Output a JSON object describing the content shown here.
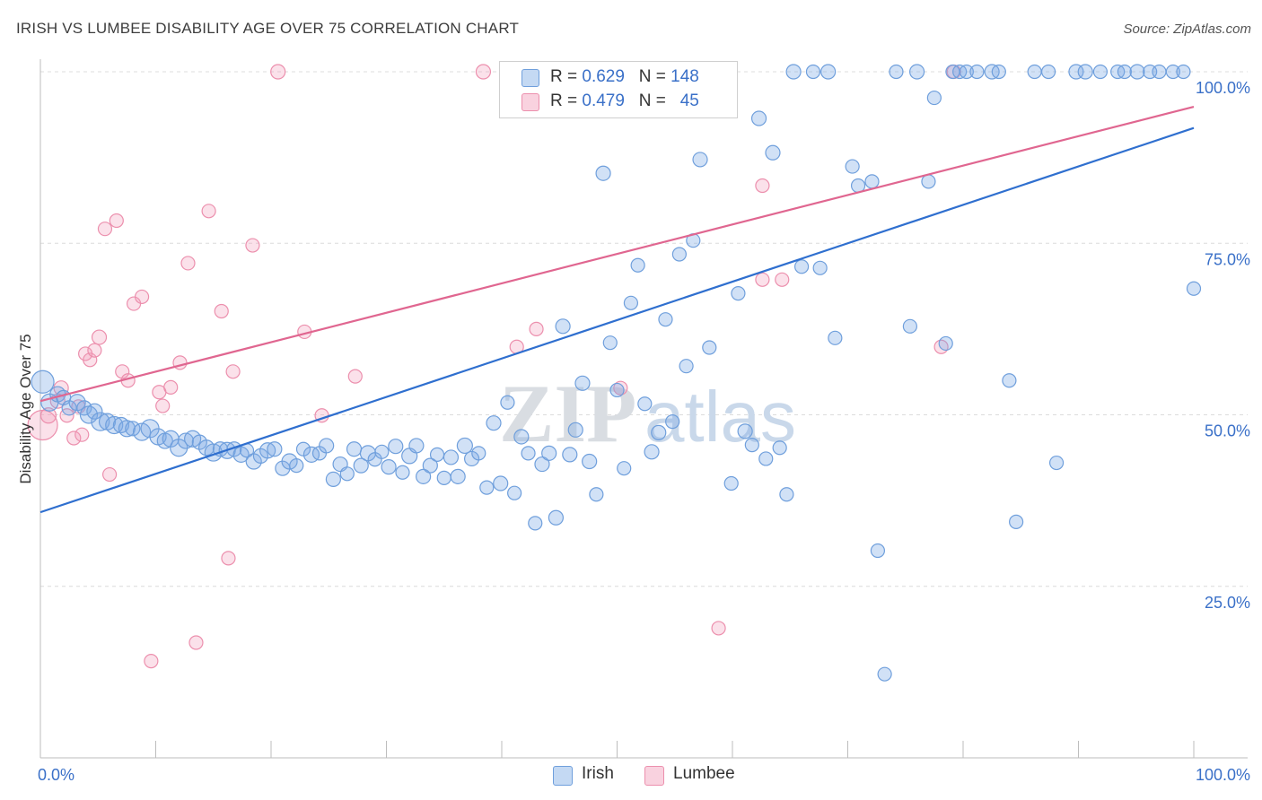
{
  "title": "IRISH VS LUMBEE DISABILITY AGE OVER 75 CORRELATION CHART",
  "source": "Source: ZipAtlas.com",
  "watermark": {
    "zip": "ZIP",
    "atlas": "atlas"
  },
  "colors": {
    "irish_fill": "rgba(124,170,228,0.35)",
    "irish_stroke": "#6f9fdc",
    "irish_line": "#2f6fcf",
    "lumbee_fill": "rgba(242,156,184,0.30)",
    "lumbee_stroke": "#ec8fad",
    "lumbee_line": "#e06690",
    "tick_label": "#3a70c8",
    "grid": "#dcdcdc"
  },
  "legend": {
    "irish": {
      "r_label": "R = ",
      "r_value": "0.629",
      "n_label": "N = ",
      "n_value": "148"
    },
    "lumbee": {
      "r_label": "R = ",
      "r_value": "0.479",
      "n_label": "N = ",
      "n_value": "45"
    }
  },
  "chart_data": {
    "type": "scatter",
    "title": "IRISH VS LUMBEE DISABILITY AGE OVER 75 CORRELATION CHART",
    "xlabel": "",
    "ylabel": "Disability Age Over 75",
    "xlim": [
      0,
      100
    ],
    "ylim": [
      0,
      104
    ],
    "x_tick_labels": [
      {
        "value": 0,
        "label": "0.0%"
      },
      {
        "value": 100,
        "label": "100.0%"
      }
    ],
    "y_tick_labels": [
      {
        "value": 25,
        "label": "25.0%"
      },
      {
        "value": 50,
        "label": "50.0%"
      },
      {
        "value": 75,
        "label": "75.0%"
      },
      {
        "value": 100,
        "label": "100.0%"
      }
    ],
    "grid": true,
    "legend_position": "top-center",
    "series": [
      {
        "name": "Irish",
        "R": 0.629,
        "N": 148,
        "trend": {
          "x": [
            0,
            100
          ],
          "y": [
            35.8,
            91.8
          ]
        },
        "points": [
          [
            0.2,
            54.8,
            22
          ],
          [
            0.8,
            51.8,
            16
          ],
          [
            1.5,
            53,
            14
          ],
          [
            2.0,
            52.5,
            13
          ],
          [
            2.5,
            51,
            13
          ],
          [
            3.2,
            51.8,
            15
          ],
          [
            3.8,
            51,
            13
          ],
          [
            4.2,
            50,
            16
          ],
          [
            4.7,
            50.5,
            14
          ],
          [
            5.2,
            49,
            17
          ],
          [
            5.8,
            49,
            15
          ],
          [
            6.4,
            48.5,
            16
          ],
          [
            7.0,
            48.5,
            14
          ],
          [
            7.5,
            48,
            15
          ],
          [
            8.0,
            48,
            13
          ],
          [
            8.8,
            47.5,
            16
          ],
          [
            9.5,
            48,
            17
          ],
          [
            10.2,
            46.8,
            15
          ],
          [
            10.8,
            46.2,
            14
          ],
          [
            11.3,
            46.5,
            15
          ],
          [
            12.0,
            45.2,
            16
          ],
          [
            12.6,
            46.2,
            14
          ],
          [
            13.2,
            46.5,
            15
          ],
          [
            13.8,
            46,
            13
          ],
          [
            14.4,
            45.2,
            14
          ],
          [
            15.0,
            44.5,
            16
          ],
          [
            15.6,
            45,
            13
          ],
          [
            16.2,
            44.8,
            15
          ],
          [
            16.8,
            45,
            13
          ],
          [
            17.4,
            44.2,
            14
          ],
          [
            17.9,
            44.8,
            12
          ],
          [
            18.5,
            43.2,
            14
          ],
          [
            19.1,
            44,
            13
          ],
          [
            19.7,
            44.8,
            14
          ],
          [
            20.3,
            45,
            13
          ],
          [
            21.0,
            42.2,
            13
          ],
          [
            21.6,
            43.2,
            14
          ],
          [
            22.2,
            42.6,
            12
          ],
          [
            22.8,
            45,
            12
          ],
          [
            23.5,
            44.2,
            14
          ],
          [
            24.2,
            44.4,
            12
          ],
          [
            24.8,
            45.5,
            13
          ],
          [
            25.4,
            40.6,
            13
          ],
          [
            26.0,
            42.8,
            13
          ],
          [
            26.6,
            41.4,
            12
          ],
          [
            27.2,
            45,
            13
          ],
          [
            27.8,
            42.6,
            13
          ],
          [
            28.4,
            44.4,
            14
          ],
          [
            29.0,
            43.5,
            12
          ],
          [
            29.6,
            44.6,
            12
          ],
          [
            30.2,
            42.4,
            13
          ],
          [
            30.8,
            45.4,
            13
          ],
          [
            31.4,
            41.6,
            12
          ],
          [
            32.0,
            44,
            14
          ],
          [
            32.6,
            45.5,
            13
          ],
          [
            33.2,
            41,
            13
          ],
          [
            33.8,
            42.6,
            13
          ],
          [
            34.4,
            44.2,
            12
          ],
          [
            35.0,
            40.8,
            12
          ],
          [
            35.6,
            43.8,
            13
          ],
          [
            36.2,
            41,
            13
          ],
          [
            36.8,
            45.5,
            14
          ],
          [
            37.4,
            43.6,
            13
          ],
          [
            38.0,
            44.4,
            12
          ],
          [
            38.7,
            39.4,
            12
          ],
          [
            39.3,
            48.8,
            13
          ],
          [
            39.9,
            40,
            13
          ],
          [
            40.5,
            51.8,
            12
          ],
          [
            41.1,
            38.6,
            12
          ],
          [
            41.7,
            46.8,
            13
          ],
          [
            42.3,
            44.4,
            12
          ],
          [
            42.9,
            34.2,
            12
          ],
          [
            43.5,
            42.8,
            13
          ],
          [
            44.1,
            44.4,
            13
          ],
          [
            44.7,
            35,
            13
          ],
          [
            45.3,
            62.9,
            13
          ],
          [
            45.9,
            44.2,
            13
          ],
          [
            46.4,
            47.8,
            13
          ],
          [
            47.0,
            54.6,
            13
          ],
          [
            47.6,
            43.2,
            13
          ],
          [
            48.2,
            38.4,
            12
          ],
          [
            48.8,
            85.2,
            13
          ],
          [
            49.4,
            60.5,
            12
          ],
          [
            50.0,
            53.6,
            12
          ],
          [
            50.6,
            42.2,
            12
          ],
          [
            51.2,
            66.3,
            12
          ],
          [
            51.8,
            71.8,
            12
          ],
          [
            52.4,
            51.6,
            12
          ],
          [
            53.0,
            44.6,
            13
          ],
          [
            53.6,
            47.4,
            13
          ],
          [
            54.2,
            63.9,
            12
          ],
          [
            54.8,
            49,
            12
          ],
          [
            55.4,
            73.4,
            12
          ],
          [
            56.0,
            57.1,
            12
          ],
          [
            56.6,
            75.4,
            12
          ],
          [
            57.2,
            87.2,
            13
          ],
          [
            58.0,
            59.8,
            12
          ],
          [
            58.7,
            100,
            13
          ],
          [
            59.3,
            100,
            12
          ],
          [
            59.9,
            40,
            12
          ],
          [
            60.5,
            67.7,
            12
          ],
          [
            61.1,
            47.6,
            13
          ],
          [
            61.7,
            45.6,
            12
          ],
          [
            62.3,
            93.2,
            13
          ],
          [
            62.9,
            43.6,
            12
          ],
          [
            63.5,
            88.2,
            13
          ],
          [
            64.1,
            45.2,
            12
          ],
          [
            64.7,
            38.4,
            12
          ],
          [
            65.3,
            100,
            13
          ],
          [
            66.0,
            71.6,
            12
          ],
          [
            67.0,
            100,
            12
          ],
          [
            67.6,
            71.4,
            12
          ],
          [
            68.3,
            100,
            13
          ],
          [
            68.9,
            61.2,
            12
          ],
          [
            70.4,
            86.2,
            12
          ],
          [
            70.9,
            83.4,
            12
          ],
          [
            72.1,
            84,
            12
          ],
          [
            72.6,
            30.2,
            12
          ],
          [
            73.2,
            12.2,
            12
          ],
          [
            74.2,
            100,
            12
          ],
          [
            75.4,
            62.9,
            12
          ],
          [
            76.0,
            100,
            13
          ],
          [
            77.0,
            84,
            12
          ],
          [
            77.5,
            96.2,
            12
          ],
          [
            78.5,
            60.4,
            12
          ],
          [
            79.1,
            100,
            12
          ],
          [
            79.7,
            100,
            12
          ],
          [
            80.3,
            100,
            12
          ],
          [
            81.2,
            100,
            12
          ],
          [
            82.5,
            100,
            13
          ],
          [
            83.1,
            100,
            12
          ],
          [
            84.0,
            55,
            12
          ],
          [
            84.6,
            34.4,
            12
          ],
          [
            86.2,
            100,
            12
          ],
          [
            87.4,
            100,
            12
          ],
          [
            88.1,
            43,
            12
          ],
          [
            89.8,
            100,
            13
          ],
          [
            90.6,
            100,
            13
          ],
          [
            91.9,
            100,
            12
          ],
          [
            93.4,
            100,
            12
          ],
          [
            94.0,
            100,
            12
          ],
          [
            95.1,
            100,
            13
          ],
          [
            96.2,
            100,
            12
          ],
          [
            97.0,
            100,
            12
          ],
          [
            98.2,
            100,
            12
          ],
          [
            99.1,
            100,
            12
          ],
          [
            100.0,
            68.4,
            12
          ],
          [
            55.8,
            100,
            12
          ],
          [
            56.6,
            100,
            12
          ]
        ]
      },
      {
        "name": "Lumbee",
        "R": 0.479,
        "N": 45,
        "trend": {
          "x": [
            0,
            100
          ],
          "y": [
            52,
            94.9
          ]
        },
        "points": [
          [
            0.2,
            48.5,
            30
          ],
          [
            0.7,
            49.9,
            14
          ],
          [
            1.5,
            52,
            13
          ],
          [
            1.8,
            53.9,
            13
          ],
          [
            2.3,
            49.9,
            12
          ],
          [
            2.9,
            46.6,
            12
          ],
          [
            3.3,
            51.2,
            12
          ],
          [
            3.6,
            47.1,
            12
          ],
          [
            3.9,
            58.9,
            12
          ],
          [
            4.3,
            58,
            12
          ],
          [
            4.7,
            59.4,
            12
          ],
          [
            5.1,
            61.3,
            13
          ],
          [
            5.6,
            77.1,
            12
          ],
          [
            6.0,
            41.3,
            12
          ],
          [
            6.6,
            78.3,
            12
          ],
          [
            7.1,
            56.3,
            12
          ],
          [
            7.6,
            55,
            12
          ],
          [
            8.1,
            66.2,
            12
          ],
          [
            8.8,
            67.2,
            12
          ],
          [
            9.6,
            14.1,
            12
          ],
          [
            10.3,
            53.3,
            12
          ],
          [
            10.6,
            51.3,
            12
          ],
          [
            11.3,
            54,
            12
          ],
          [
            12.1,
            57.6,
            12
          ],
          [
            12.8,
            72.1,
            12
          ],
          [
            13.5,
            16.8,
            12
          ],
          [
            14.6,
            79.7,
            12
          ],
          [
            15.7,
            65.1,
            12
          ],
          [
            16.3,
            29.1,
            12
          ],
          [
            16.7,
            56.3,
            12
          ],
          [
            18.4,
            74.7,
            12
          ],
          [
            20.6,
            100,
            13
          ],
          [
            22.9,
            62.1,
            12
          ],
          [
            24.4,
            49.9,
            12
          ],
          [
            27.3,
            55.6,
            12
          ],
          [
            38.4,
            100,
            13
          ],
          [
            41.3,
            59.9,
            12
          ],
          [
            43.0,
            62.5,
            12
          ],
          [
            50.3,
            53.9,
            12
          ],
          [
            58.8,
            18.9,
            12
          ],
          [
            62.6,
            83.4,
            12
          ],
          [
            62.6,
            69.7,
            12
          ],
          [
            64.3,
            69.7,
            12
          ],
          [
            78.1,
            59.9,
            12
          ],
          [
            79.2,
            100,
            12
          ]
        ]
      }
    ]
  },
  "bottom_legend": {
    "irish": "Irish",
    "lumbee": "Lumbee"
  }
}
